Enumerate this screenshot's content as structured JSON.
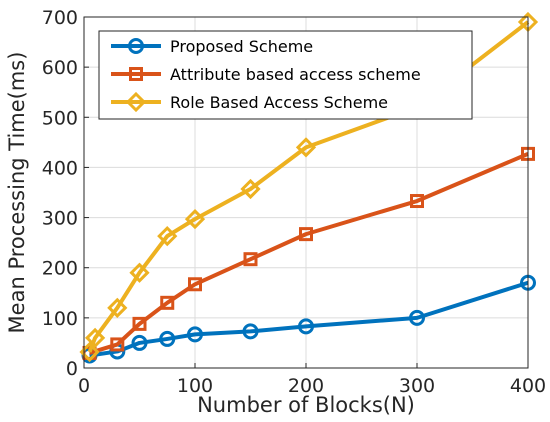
{
  "chart_data": {
    "type": "line",
    "title": "",
    "xlabel": "Number of Blocks(N)",
    "ylabel": "Mean Processing Time(ms)",
    "xlim": [
      0,
      400
    ],
    "ylim": [
      0,
      700
    ],
    "xticks": [
      0,
      100,
      200,
      300,
      400
    ],
    "yticks": [
      0,
      100,
      200,
      300,
      400,
      500,
      600,
      700
    ],
    "grid": true,
    "legend_position": "top-left",
    "series": [
      {
        "name": "Proposed Scheme",
        "color": "#0072BD",
        "marker": "circle",
        "x": [
          5,
          30,
          50,
          75,
          100,
          150,
          200,
          300,
          400
        ],
        "y": [
          25,
          33,
          50,
          58,
          67,
          73,
          83,
          100,
          170
        ]
      },
      {
        "name": "Attribute based access scheme",
        "color": "#D95319",
        "marker": "square",
        "x": [
          5,
          30,
          50,
          75,
          100,
          150,
          200,
          300,
          400
        ],
        "y": [
          30,
          47,
          88,
          130,
          167,
          217,
          267,
          333,
          427
        ]
      },
      {
        "name": "Role Based Access Scheme",
        "color": "#EDB120",
        "marker": "diamond",
        "x": [
          5,
          10,
          30,
          50,
          75,
          100,
          150,
          200,
          300,
          400
        ],
        "y": [
          32,
          60,
          120,
          190,
          263,
          297,
          357,
          440,
          520,
          690
        ]
      }
    ]
  }
}
